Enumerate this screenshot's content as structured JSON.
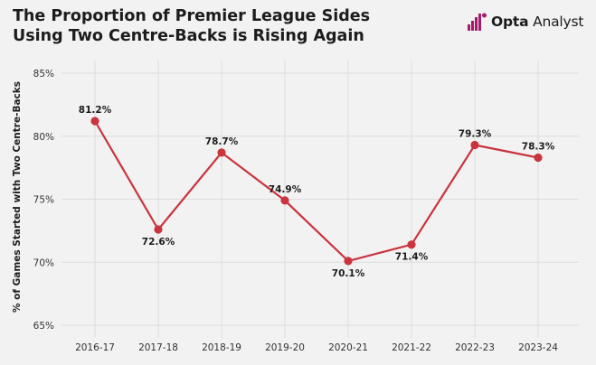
{
  "brand": {
    "prefix": "Opta",
    "suffix": "Analyst",
    "logo_color": "#a51a6b"
  },
  "chart_data": {
    "type": "line",
    "title": "The Proportion of Premier League Sides Using Two Centre-Backs is Rising Again",
    "xlabel": "",
    "ylabel": "% of Games Started with Two Centre-Backs",
    "categories": [
      "2016-17",
      "2017-18",
      "2018-19",
      "2019-20",
      "2020-21",
      "2021-22",
      "2022-23",
      "2023-24"
    ],
    "values": [
      81.2,
      72.6,
      78.7,
      74.9,
      70.1,
      71.4,
      79.3,
      78.3
    ],
    "data_labels": [
      "81.2%",
      "72.6%",
      "78.7%",
      "74.9%",
      "70.1%",
      "71.4%",
      "79.3%",
      "78.3%"
    ],
    "label_position": [
      "above",
      "below",
      "above",
      "above",
      "below",
      "below",
      "above",
      "above"
    ],
    "ylim": [
      65,
      85
    ],
    "yticks": [
      65,
      70,
      75,
      80,
      85
    ],
    "ytick_labels": [
      "65%",
      "70%",
      "75%",
      "80%",
      "85%"
    ],
    "grid": true,
    "line_color": "#c9343e",
    "point_color": "#c9343e",
    "grid_color": "#dedcdc"
  }
}
